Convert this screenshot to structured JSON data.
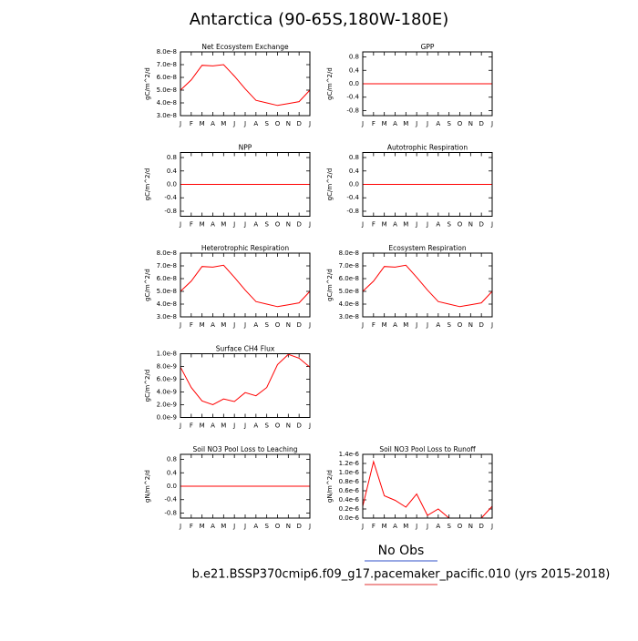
{
  "title": "Antarctica (90-65S,180W-180E)",
  "legend": [
    {
      "name": "No Obs",
      "color": "#3050c8"
    },
    {
      "name": "b.e21.BSSP370cmip6.f09_g17.pacemaker_pacific.010 (yrs 2015-2018)",
      "color": "#e03030"
    }
  ],
  "chart_data": [
    {
      "type": "line",
      "title": "Net Ecosystem Exchange",
      "y_label": "gC/m^2/d",
      "categories": [
        "J",
        "F",
        "M",
        "A",
        "M",
        "J",
        "J",
        "A",
        "S",
        "O",
        "N",
        "D",
        "J"
      ],
      "series": [
        {
          "color": "#ff0000",
          "values": [
            5e-08,
            5.8e-08,
            6.95e-08,
            6.9e-08,
            7e-08,
            6.1e-08,
            5.1e-08,
            4.2e-08,
            4e-08,
            3.8e-08,
            3.95e-08,
            4.1e-08,
            5e-08
          ]
        }
      ],
      "ylim": [
        3e-08,
        8e-08
      ],
      "yticks": [
        {
          "value": 3e-08,
          "label": "3.0e-8"
        },
        {
          "value": 4e-08,
          "label": "4.0e-8"
        },
        {
          "value": 5e-08,
          "label": "5.0e-8"
        },
        {
          "value": 6e-08,
          "label": "6.0e-8"
        },
        {
          "value": 7e-08,
          "label": "7.0e-8"
        },
        {
          "value": 8e-08,
          "label": "8.0e-8"
        }
      ]
    },
    {
      "type": "line",
      "title": "GPP",
      "y_label": "gC/m^2/d",
      "categories": [
        "J",
        "F",
        "M",
        "A",
        "M",
        "J",
        "J",
        "A",
        "S",
        "O",
        "N",
        "D",
        "J"
      ],
      "series": [
        {
          "color": "#ff0000",
          "values": [
            0,
            0,
            0,
            0,
            0,
            0,
            0,
            0,
            0,
            0,
            0,
            0,
            0
          ]
        }
      ],
      "ylim": [
        -0.95,
        0.95
      ],
      "yticks": [
        -0.8,
        -0.4,
        {
          "value": 0,
          "label": "0.0"
        },
        0.4,
        0.8
      ]
    },
    {
      "type": "line",
      "title": "NPP",
      "y_label": "gC/m^2/d",
      "categories": [
        "J",
        "F",
        "M",
        "A",
        "M",
        "J",
        "J",
        "A",
        "S",
        "O",
        "N",
        "D",
        "J"
      ],
      "series": [
        {
          "color": "#ff0000",
          "values": [
            0,
            0,
            0,
            0,
            0,
            0,
            0,
            0,
            0,
            0,
            0,
            0,
            0
          ]
        }
      ],
      "ylim": [
        -0.95,
        0.95
      ],
      "yticks": [
        -0.8,
        -0.4,
        {
          "value": 0,
          "label": "0.0"
        },
        0.4,
        0.8
      ]
    },
    {
      "type": "line",
      "title": "Autotrophic Respiration",
      "y_label": "gC/m^2/d",
      "categories": [
        "J",
        "F",
        "M",
        "A",
        "M",
        "J",
        "J",
        "A",
        "S",
        "O",
        "N",
        "D",
        "J"
      ],
      "series": [
        {
          "color": "#ff0000",
          "values": [
            0,
            0,
            0,
            0,
            0,
            0,
            0,
            0,
            0,
            0,
            0,
            0,
            0
          ]
        }
      ],
      "ylim": [
        -0.95,
        0.95
      ],
      "yticks": [
        -0.8,
        -0.4,
        {
          "value": 0,
          "label": "0.0"
        },
        0.4,
        0.8
      ]
    },
    {
      "type": "line",
      "title": "Heterotrophic Respiration",
      "y_label": "gC/m^2/d",
      "categories": [
        "J",
        "F",
        "M",
        "A",
        "M",
        "J",
        "J",
        "A",
        "S",
        "O",
        "N",
        "D",
        "J"
      ],
      "series": [
        {
          "color": "#ff0000",
          "values": [
            5e-08,
            5.8e-08,
            6.95e-08,
            6.9e-08,
            7.05e-08,
            6.1e-08,
            5.1e-08,
            4.2e-08,
            4e-08,
            3.8e-08,
            3.95e-08,
            4.1e-08,
            5e-08
          ]
        }
      ],
      "ylim": [
        3e-08,
        8e-08
      ],
      "yticks": [
        {
          "value": 3e-08,
          "label": "3.0e-8"
        },
        {
          "value": 4e-08,
          "label": "4.0e-8"
        },
        {
          "value": 5e-08,
          "label": "5.0e-8"
        },
        {
          "value": 6e-08,
          "label": "6.0e-8"
        },
        {
          "value": 7e-08,
          "label": "7.0e-8"
        },
        {
          "value": 8e-08,
          "label": "8.0e-8"
        }
      ]
    },
    {
      "type": "line",
      "title": "Ecosystem Respiration",
      "y_label": "gC/m^2/d",
      "categories": [
        "J",
        "F",
        "M",
        "A",
        "M",
        "J",
        "J",
        "A",
        "S",
        "O",
        "N",
        "D",
        "J"
      ],
      "series": [
        {
          "color": "#ff0000",
          "values": [
            5e-08,
            5.8e-08,
            6.95e-08,
            6.9e-08,
            7.05e-08,
            6.1e-08,
            5.1e-08,
            4.2e-08,
            4e-08,
            3.8e-08,
            3.95e-08,
            4.1e-08,
            5e-08
          ]
        }
      ],
      "ylim": [
        3e-08,
        8e-08
      ],
      "yticks": [
        {
          "value": 3e-08,
          "label": "3.0e-8"
        },
        {
          "value": 4e-08,
          "label": "4.0e-8"
        },
        {
          "value": 5e-08,
          "label": "5.0e-8"
        },
        {
          "value": 6e-08,
          "label": "6.0e-8"
        },
        {
          "value": 7e-08,
          "label": "7.0e-8"
        },
        {
          "value": 8e-08,
          "label": "8.0e-8"
        }
      ]
    },
    {
      "type": "line",
      "title": "Surface CH4 Flux",
      "y_label": "gC/m^2/d",
      "categories": [
        "J",
        "F",
        "M",
        "A",
        "M",
        "J",
        "J",
        "A",
        "S",
        "O",
        "N",
        "D",
        "J"
      ],
      "series": [
        {
          "color": "#ff0000",
          "values": [
            7.9e-09,
            4.7e-09,
            2.6e-09,
            2e-09,
            2.9e-09,
            2.5e-09,
            3.9e-09,
            3.4e-09,
            4.7e-09,
            8.3e-09,
            9.9e-09,
            9.3e-09,
            7.9e-09
          ]
        }
      ],
      "ylim": [
        0,
        1e-08
      ],
      "yticks": [
        {
          "value": 0,
          "label": "0.0e-9"
        },
        {
          "value": 2e-09,
          "label": "2.0e-9"
        },
        {
          "value": 4e-09,
          "label": "4.0e-9"
        },
        {
          "value": 6e-09,
          "label": "6.0e-9"
        },
        {
          "value": 8e-09,
          "label": "8.0e-9"
        },
        {
          "value": 1e-08,
          "label": "1.0e-8"
        }
      ]
    },
    {
      "type": "line",
      "title": "Soil NO3 Pool Loss to Leaching",
      "y_label": "gN/m^2/d",
      "categories": [
        "J",
        "F",
        "M",
        "A",
        "M",
        "J",
        "J",
        "A",
        "S",
        "O",
        "N",
        "D",
        "J"
      ],
      "series": [
        {
          "color": "#ff0000",
          "values": [
            0,
            0,
            0,
            0,
            0,
            0,
            0,
            0,
            0,
            0,
            0,
            0,
            0
          ]
        }
      ],
      "ylim": [
        -0.95,
        0.95
      ],
      "yticks": [
        -0.8,
        -0.4,
        {
          "value": 0,
          "label": "0.0"
        },
        0.4,
        0.8
      ]
    },
    {
      "type": "line",
      "title": "Soil NO3 Pool Loss to Runoff",
      "y_label": "gN/m^2/d",
      "categories": [
        "J",
        "F",
        "M",
        "A",
        "M",
        "J",
        "J",
        "A",
        "S",
        "O",
        "N",
        "D",
        "J"
      ],
      "series": [
        {
          "color": "#ff0000",
          "values": [
            2.6e-07,
            1.24e-06,
            4.9e-07,
            3.9e-07,
            2.4e-07,
            5.3e-07,
            6e-08,
            2e-07,
            0,
            0,
            0,
            0,
            2.6e-07
          ]
        }
      ],
      "ylim": [
        0,
        1.4e-06
      ],
      "yticks": [
        {
          "value": 0,
          "label": "0.0e-6"
        },
        {
          "value": 2e-07,
          "label": "0.2e-6"
        },
        {
          "value": 4e-07,
          "label": "0.4e-6"
        },
        {
          "value": 6e-07,
          "label": "0.6e-6"
        },
        {
          "value": 8e-07,
          "label": "0.8e-6"
        },
        {
          "value": 1e-06,
          "label": "1.0e-6"
        },
        {
          "value": 1.2e-06,
          "label": "1.2e-6"
        },
        {
          "value": 1.4e-06,
          "label": "1.4e-6"
        }
      ]
    }
  ]
}
